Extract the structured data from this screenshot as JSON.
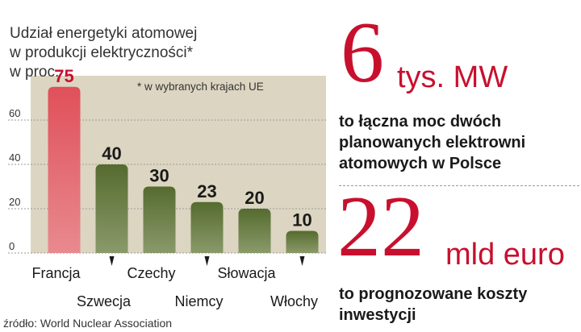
{
  "chart_data": {
    "type": "bar",
    "title": [
      "Udział energetyki atomowej",
      "w produkcji elektryczności*",
      "w proc."
    ],
    "footnote": "* w wybranych krajach UE",
    "categories": [
      "Francja",
      "Szwecja",
      "Czechy",
      "Niemcy",
      "Słowacja",
      "Włochy"
    ],
    "values": [
      75,
      40,
      30,
      23,
      20,
      10
    ],
    "data_labels": [
      "75",
      "40",
      "30",
      "23",
      "20",
      "10"
    ],
    "y_ticks": [
      0,
      20,
      40,
      60
    ],
    "y_tick_labels": [
      "0",
      "20",
      "40",
      "60"
    ],
    "ylim": [
      0,
      80
    ],
    "grid": true,
    "colors": {
      "highlight": "#e0505a",
      "bar": "#556b2f",
      "plot_bg": "#dcd5c1"
    },
    "source": "źródło: World Nuclear Association"
  },
  "stats": [
    {
      "number": "6",
      "unit": "tys. MW",
      "description": [
        "to łączna moc dwóch",
        "planowanych elektrowni",
        "atomowych w Polsce"
      ]
    },
    {
      "number": "22",
      "unit": "mld euro",
      "description": [
        "to prognozowane koszty",
        "inwestycji"
      ]
    }
  ],
  "colors": {
    "accent": "#c8102e",
    "text": "#1a1a1a"
  }
}
